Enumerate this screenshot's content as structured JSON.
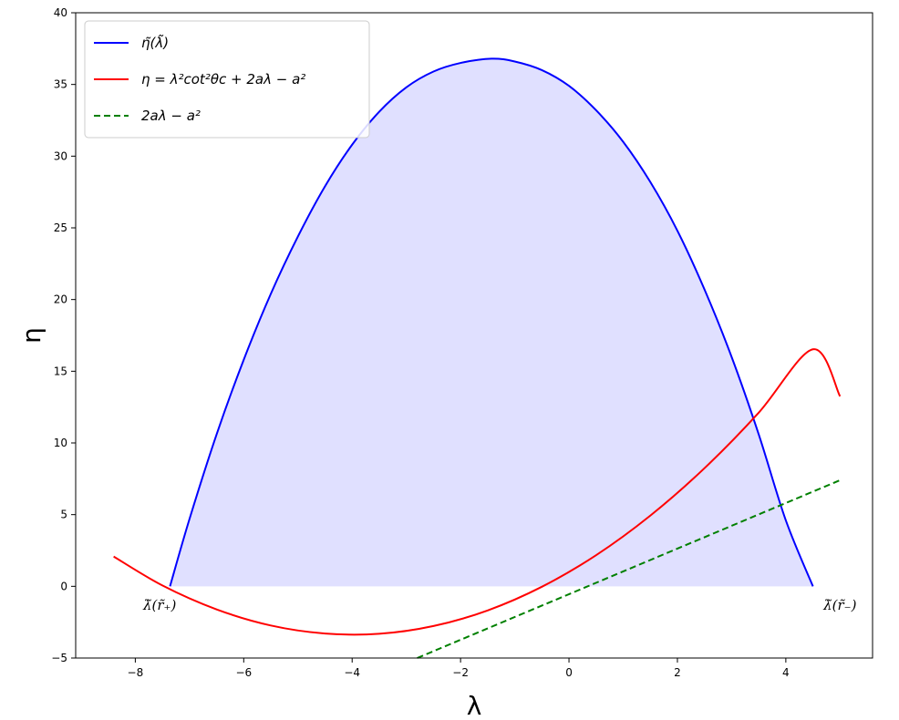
{
  "chart_data": {
    "type": "line",
    "title": "",
    "xlabel": "λ",
    "ylabel": "η",
    "xlim": [
      -9.1,
      5.6
    ],
    "ylim": [
      -5,
      40
    ],
    "xticks": [
      -8,
      -6,
      -4,
      -2,
      0,
      2,
      4
    ],
    "xtick_labels": [
      "−8",
      "−6",
      "−4",
      "−2",
      "0",
      "2",
      "4"
    ],
    "yticks": [
      -5,
      0,
      5,
      10,
      15,
      20,
      25,
      30,
      35,
      40
    ],
    "ytick_labels": [
      "−5",
      "0",
      "5",
      "10",
      "15",
      "20",
      "25",
      "30",
      "35",
      "40"
    ],
    "grid": false,
    "legend_position": "top-left",
    "series": [
      {
        "name": "η̃(λ̃)",
        "color": "#0000ff",
        "style": "solid",
        "fill": "#e0e0ff",
        "x": [
          -7.36,
          -7.0,
          -6.5,
          -6.0,
          -5.5,
          -5.0,
          -4.5,
          -4.0,
          -3.5,
          -3.0,
          -2.5,
          -2.0,
          -1.43,
          -1.0,
          -0.5,
          0.0,
          0.5,
          1.0,
          1.5,
          2.0,
          2.5,
          3.0,
          3.5,
          4.0,
          4.5
        ],
        "y": [
          0.0,
          4.7,
          10.6,
          15.8,
          20.4,
          24.4,
          27.9,
          30.8,
          33.1,
          34.8,
          35.9,
          36.5,
          36.8,
          36.6,
          36.0,
          34.9,
          33.2,
          31.0,
          28.2,
          24.8,
          20.7,
          16.0,
          10.6,
          4.6,
          0.0
        ]
      },
      {
        "name": "η = λ²cot²θc + 2aλ − a²",
        "color": "#ff0000",
        "style": "solid",
        "x": [
          -8.4,
          -7.5,
          -6.5,
          -5.5,
          -4.5,
          -3.5,
          -2.5,
          -1.5,
          -0.5,
          0.5,
          1.5,
          2.5,
          3.5,
          4.5,
          5.0
        ],
        "y": [
          2.08,
          0.06,
          -1.61,
          -2.73,
          -3.29,
          -3.31,
          -2.77,
          -1.68,
          -0.03,
          2.17,
          4.93,
          8.24,
          12.11,
          16.53,
          13.25
        ]
      },
      {
        "name": "2aλ − a²",
        "color": "#008000",
        "style": "dashed",
        "x": [
          -2.8,
          5.0
        ],
        "y": [
          -5.0,
          7.4
        ]
      }
    ],
    "annotations": [
      {
        "text": "λ̃(r̃₊)",
        "x": -7.55,
        "y": -1.0
      },
      {
        "text": "λ̃(r̃₋)",
        "x": 5.0,
        "y": -1.0
      }
    ]
  }
}
